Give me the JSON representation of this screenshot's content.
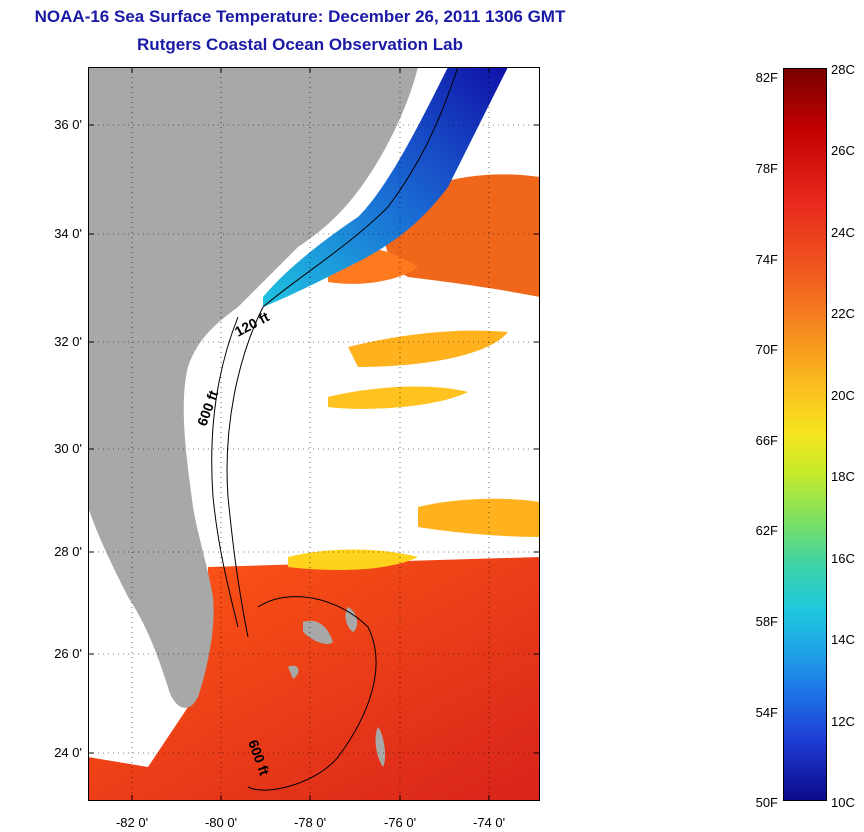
{
  "title": "NOAA-16 Sea Surface Temperature:  December 26, 2011 1306 GMT",
  "subtitle": "Rutgers Coastal Ocean Observation Lab",
  "map": {
    "lat_ticks": [
      "36 0'",
      "34 0'",
      "32 0'",
      "30 0'",
      "28 0'",
      "26 0'",
      "24 0'"
    ],
    "lon_ticks": [
      "-82 0'",
      "-80 0'",
      "-78 0'",
      "-76 0'",
      "-74 0'"
    ],
    "contour_labels": [
      "120 ft",
      "600 ft",
      "600 ft"
    ],
    "colors": {
      "land": "#a8a8a8",
      "cloud": "#ffffff",
      "warm": "#e8401c",
      "cool": "#1a6bd4"
    }
  },
  "colorbar": {
    "fahrenheit_labels": [
      "82F",
      "78F",
      "74F",
      "70F",
      "66F",
      "62F",
      "58F",
      "54F",
      "50F"
    ],
    "celsius_labels": [
      "28C",
      "26C",
      "24C",
      "22C",
      "20C",
      "18C",
      "16C",
      "14C",
      "12C",
      "10C"
    ],
    "range_c": [
      10,
      28
    ]
  }
}
